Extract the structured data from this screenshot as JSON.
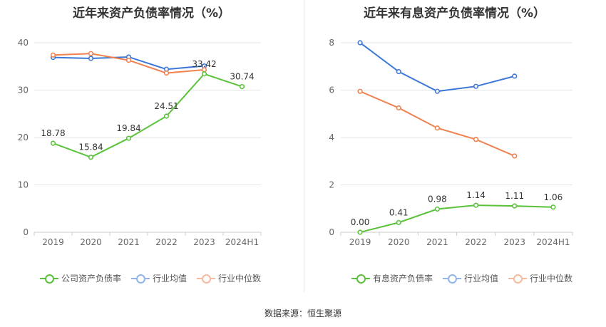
{
  "chart_data": [
    {
      "type": "line",
      "title": "近年来资产负债率情况（%）",
      "categories": [
        "2019",
        "2020",
        "2021",
        "2022",
        "2023",
        "2024H1"
      ],
      "ylim": [
        0,
        40
      ],
      "yticks": [
        0,
        10,
        20,
        30,
        40
      ],
      "grid": true,
      "legend_position": "bottom",
      "series": [
        {
          "name": "公司资产负债率",
          "color": "#5ac23a",
          "values": [
            18.78,
            15.84,
            19.84,
            24.51,
            33.42,
            30.74
          ],
          "labels": [
            "18.78",
            "15.84",
            "19.84",
            "24.51",
            "33.42",
            "30.74"
          ]
        },
        {
          "name": "行业均值",
          "color": "#3d78d8",
          "values": [
            36.9,
            36.7,
            37.0,
            34.4,
            35.1,
            null
          ]
        },
        {
          "name": "行业中位数",
          "color": "#f08250",
          "values": [
            37.4,
            37.7,
            36.3,
            33.6,
            34.3,
            null
          ]
        }
      ]
    },
    {
      "type": "line",
      "title": "近年来有息资产负债率情况（%）",
      "categories": [
        "2019",
        "2020",
        "2021",
        "2022",
        "2023",
        "2024H1"
      ],
      "ylim": [
        0,
        8
      ],
      "yticks": [
        0,
        2,
        4,
        6,
        8
      ],
      "grid": true,
      "legend_position": "bottom",
      "series": [
        {
          "name": "有息资产负债率",
          "color": "#5ac23a",
          "values": [
            0.0,
            0.41,
            0.98,
            1.14,
            1.11,
            1.06
          ],
          "labels": [
            "0.00",
            "0.41",
            "0.98",
            "1.14",
            "1.11",
            "1.06"
          ]
        },
        {
          "name": "行业均值",
          "color": "#3d78d8",
          "values": [
            8.0,
            6.78,
            5.95,
            6.16,
            6.59,
            null
          ]
        },
        {
          "name": "行业中位数",
          "color": "#f08250",
          "values": [
            5.95,
            5.25,
            4.4,
            3.92,
            3.22,
            null
          ]
        }
      ]
    }
  ],
  "source": "数据来源：恒生聚源"
}
